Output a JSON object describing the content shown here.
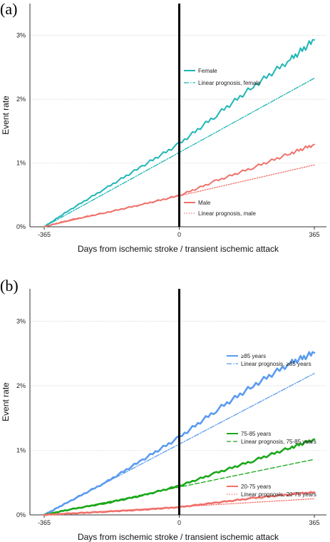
{
  "chart_data": [
    {
      "panel_label": "(a)",
      "type": "line",
      "xlabel": "Days from ischemic stroke / transient ischemic attack",
      "ylabel": "Event rate",
      "xlim": [
        -365,
        365
      ],
      "ylim": [
        0,
        3.5
      ],
      "x_ticks": [
        -365,
        0,
        365
      ],
      "y_ticks": [
        0,
        1,
        2,
        3
      ],
      "y_tick_labels": [
        "0%",
        "1%",
        "2%",
        "3%"
      ],
      "event_day": 0,
      "grid": "horizontal dotted",
      "legend": "inline, right of event line",
      "series": [
        {
          "name": "Female",
          "color": "#1fb5b5",
          "style": "solid",
          "width": 2,
          "x": [
            -365,
            -300,
            -200,
            -100,
            0,
            100,
            200,
            300,
            365
          ],
          "y": [
            0,
            0.25,
            0.6,
            0.95,
            1.3,
            1.75,
            2.2,
            2.62,
            2.93
          ]
        },
        {
          "name": "Linear prognosis, female",
          "color": "#1fb5b5",
          "style": "dashdot",
          "width": 1.3,
          "x": [
            -365,
            365
          ],
          "y": [
            0,
            2.33
          ]
        },
        {
          "name": "Male",
          "color": "#f0706a",
          "style": "solid",
          "width": 2,
          "x": [
            -365,
            -300,
            -200,
            -100,
            0,
            100,
            200,
            300,
            365
          ],
          "y": [
            0,
            0.1,
            0.22,
            0.35,
            0.49,
            0.72,
            0.93,
            1.15,
            1.29
          ]
        },
        {
          "name": "Linear prognosis, male",
          "color": "#f0706a",
          "style": "dotted",
          "width": 1.3,
          "x": [
            -365,
            365
          ],
          "y": [
            0,
            0.97
          ]
        }
      ]
    },
    {
      "panel_label": "(b)",
      "type": "line",
      "xlabel": "Days from ischemic stroke / transient ischemic attack",
      "ylabel": "Event rate",
      "xlim": [
        -365,
        365
      ],
      "ylim": [
        0,
        3.5
      ],
      "x_ticks": [
        -365,
        0,
        365
      ],
      "y_ticks": [
        0,
        1,
        2,
        3
      ],
      "y_tick_labels": [
        "0%",
        "1%",
        "2%",
        "3%"
      ],
      "event_day": 0,
      "grid": "horizontal dotted",
      "legend": "inline, right of event line",
      "series": [
        {
          "name": "≥85 years",
          "color": "#5b9bef",
          "style": "solid",
          "width": 2.6,
          "x": [
            -365,
            -300,
            -200,
            -100,
            0,
            100,
            200,
            300,
            365
          ],
          "y": [
            0,
            0.2,
            0.5,
            0.85,
            1.2,
            1.62,
            2.0,
            2.35,
            2.51
          ]
        },
        {
          "name": "Linear prognosis, ≥85 years",
          "color": "#5b9bef",
          "style": "dashdot",
          "width": 1.3,
          "x": [
            -365,
            365
          ],
          "y": [
            0,
            2.19
          ]
        },
        {
          "name": "75-85 years",
          "color": "#1aa81a",
          "style": "solid",
          "width": 2.6,
          "x": [
            -365,
            -300,
            -200,
            -100,
            0,
            100,
            200,
            300,
            365
          ],
          "y": [
            0,
            0.08,
            0.18,
            0.3,
            0.45,
            0.65,
            0.84,
            1.04,
            1.17
          ]
        },
        {
          "name": "Linear prognosis, 75-85 years",
          "color": "#1aa81a",
          "style": "dashed",
          "width": 1.3,
          "x": [
            -365,
            365
          ],
          "y": [
            0,
            0.86
          ]
        },
        {
          "name": "20-75 years",
          "color": "#f0706a",
          "style": "solid",
          "width": 2.6,
          "x": [
            -365,
            -300,
            -200,
            -100,
            0,
            100,
            200,
            300,
            365
          ],
          "y": [
            0,
            0.02,
            0.05,
            0.08,
            0.12,
            0.19,
            0.26,
            0.32,
            0.35
          ]
        },
        {
          "name": "Linear prognosis, 20-75 years",
          "color": "#f0706a",
          "style": "dotted",
          "width": 1.3,
          "x": [
            -365,
            365
          ],
          "y": [
            0,
            0.25
          ]
        }
      ]
    }
  ]
}
